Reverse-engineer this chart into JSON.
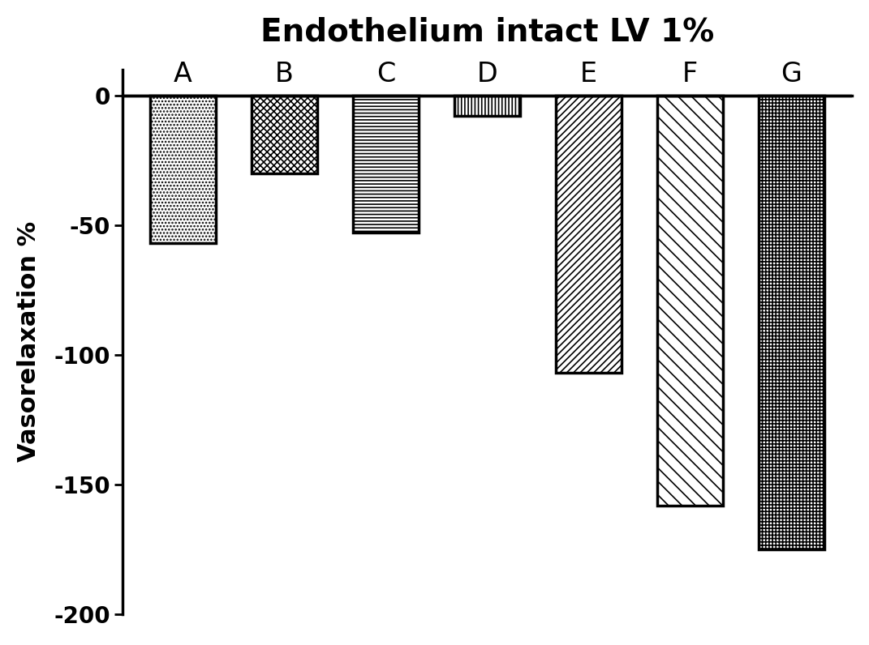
{
  "title": "Endothelium intact LV 1%",
  "ylabel": "Vasorelaxation %",
  "categories": [
    "A",
    "B",
    "C",
    "D",
    "E",
    "F",
    "G"
  ],
  "values": [
    -57,
    -30,
    -53,
    -8,
    -107,
    -158,
    -175
  ],
  "ylim": [
    -200,
    10
  ],
  "yticks": [
    0,
    -50,
    -100,
    -150,
    -200
  ],
  "bar_width": 0.65,
  "title_fontsize": 28,
  "label_fontsize": 22,
  "tick_fontsize": 20,
  "cat_label_fontsize": 24,
  "bar_facecolor": "white",
  "bar_edgecolor": "black",
  "linewidth": 2.5,
  "hatch_linewidth": 1.2
}
